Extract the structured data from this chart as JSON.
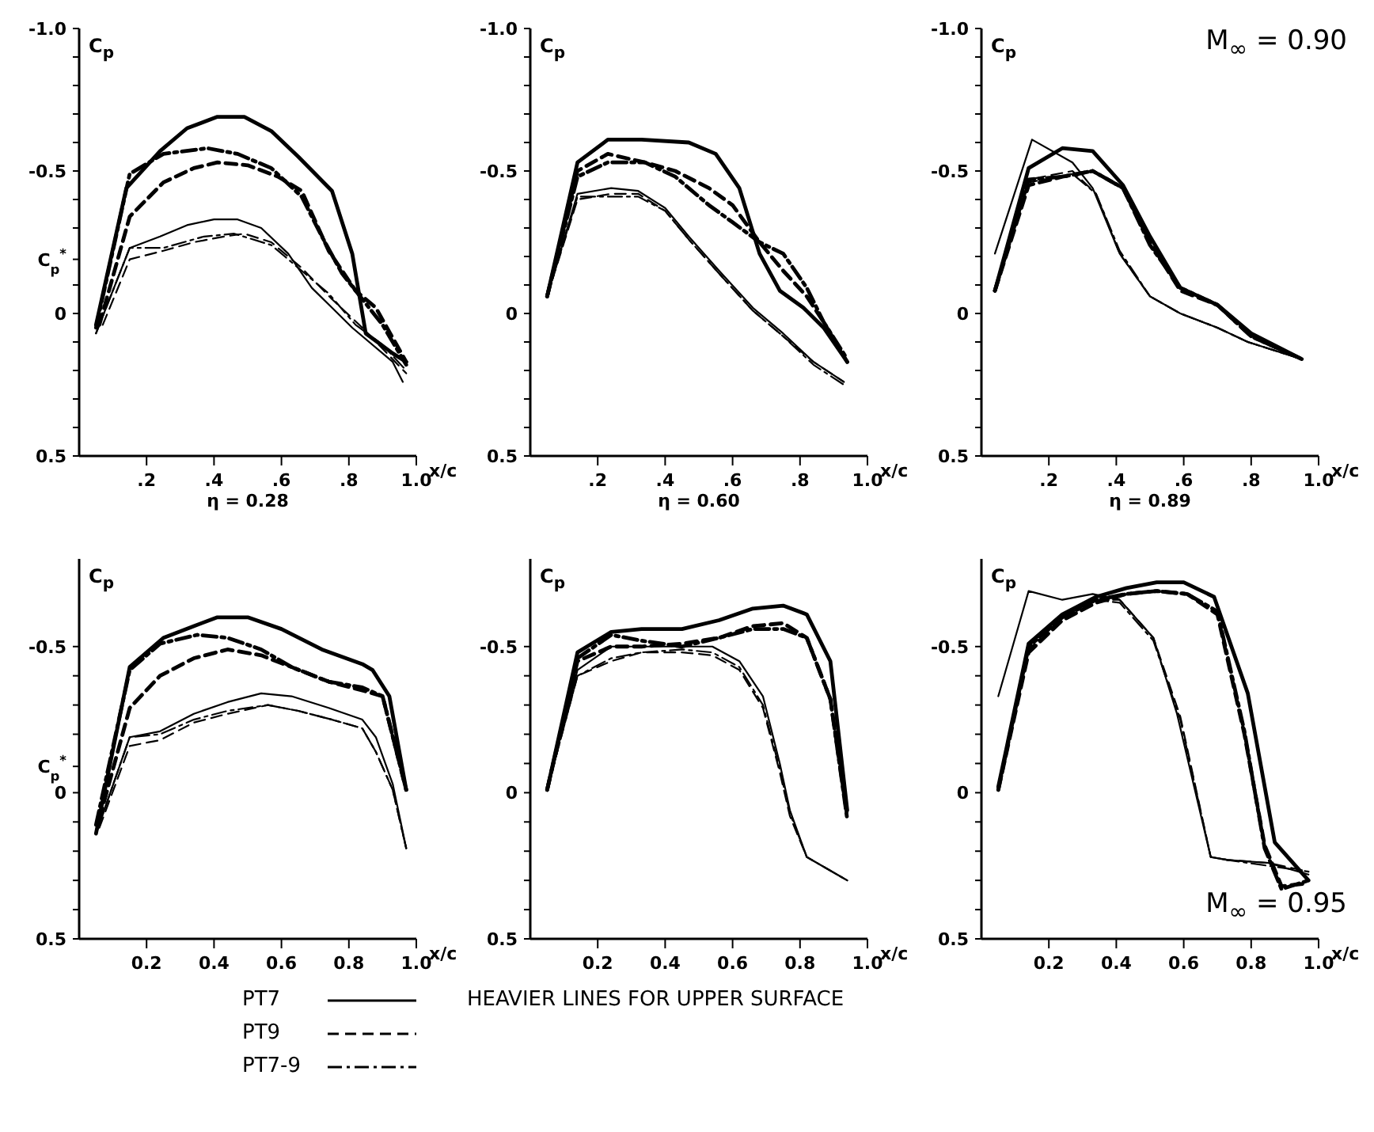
{
  "chart_data": [
    {
      "type": "line",
      "title": "η = 0.28",
      "xlabel": "x/c",
      "ylabel": "C$_{p}$",
      "xlim": [
        0,
        1.0
      ],
      "ylim": [
        0.5,
        -1.0
      ],
      "xticks": [
        {
          "value": 0.2,
          "label": ".2"
        },
        {
          "value": 0.4,
          "label": ".4"
        },
        {
          "value": 0.6,
          "label": ".6"
        },
        {
          "value": 0.8,
          "label": ".8"
        },
        {
          "value": 1.0,
          "label": "1.0"
        }
      ],
      "yticks": [
        {
          "value": -1.0,
          "label": "-1.0"
        },
        {
          "value": -0.9,
          "label": null
        },
        {
          "value": -0.8,
          "label": null
        },
        {
          "value": -0.7,
          "label": null
        },
        {
          "value": -0.6,
          "label": null
        },
        {
          "value": -0.5,
          "label": "-0.5"
        },
        {
          "value": -0.4,
          "label": null
        },
        {
          "value": -0.3,
          "label": null
        },
        {
          "value": -0.19,
          "label": "C$_{p}$$^{*}$"
        },
        {
          "value": -0.1,
          "label": null
        },
        {
          "value": 0,
          "label": "0"
        },
        {
          "value": 0.1,
          "label": null
        },
        {
          "value": 0.2,
          "label": null
        },
        {
          "value": 0.3,
          "label": null
        },
        {
          "value": 0.4,
          "label": null
        },
        {
          "value": 0.5,
          "label": "0.5"
        }
      ],
      "series": [
        {
          "color": "#000000",
          "line_style": "solid",
          "x": [
            0.05,
            0.14,
            0.24,
            0.32,
            0.41,
            0.49,
            0.57,
            0.65,
            0.75,
            0.81,
            0.85,
            0.93,
            0.97
          ],
          "values": [
            0.04,
            -0.44,
            -0.57,
            -0.65,
            -0.69,
            -0.69,
            -0.64,
            -0.55,
            -0.43,
            -0.21,
            0.07,
            0.14,
            0.17
          ]
        },
        {
          "color": "#000000",
          "line_style": "dashed",
          "x": [
            0.06,
            0.15,
            0.25,
            0.34,
            0.41,
            0.5,
            0.59,
            0.66,
            0.74,
            0.82,
            0.88,
            0.97
          ],
          "values": [
            0.04,
            -0.34,
            -0.46,
            -0.51,
            -0.53,
            -0.52,
            -0.48,
            -0.43,
            -0.22,
            -0.08,
            -0.02,
            0.17
          ]
        },
        {
          "color": "#000000",
          "line_style": "dashdot",
          "x": [
            0.05,
            0.15,
            0.25,
            0.38,
            0.47,
            0.57,
            0.66,
            0.72,
            0.78,
            0.84,
            0.9,
            0.97
          ],
          "values": [
            0.05,
            -0.49,
            -0.56,
            -0.58,
            -0.56,
            -0.51,
            -0.41,
            -0.27,
            -0.14,
            -0.05,
            0.04,
            0.18
          ]
        },
        {
          "color": "#000000",
          "line_style": "solid",
          "x": [
            0.05,
            0.15,
            0.24,
            0.32,
            0.4,
            0.47,
            0.54,
            0.62,
            0.69,
            0.75,
            0.81,
            0.93,
            0.96
          ],
          "values": [
            0.07,
            -0.23,
            -0.27,
            -0.31,
            -0.33,
            -0.33,
            -0.3,
            -0.21,
            -0.09,
            -0.02,
            0.05,
            0.17,
            0.24
          ]
        },
        {
          "color": "#000000",
          "line_style": "dashed",
          "x": [
            0.07,
            0.15,
            0.25,
            0.34,
            0.43,
            0.49,
            0.57,
            0.66,
            0.75,
            0.84,
            0.97
          ],
          "values": [
            0.04,
            -0.19,
            -0.22,
            -0.25,
            -0.27,
            -0.28,
            -0.25,
            -0.16,
            -0.05,
            0.05,
            0.21
          ]
        },
        {
          "color": "#000000",
          "line_style": "dashdot",
          "x": [
            0.05,
            0.15,
            0.25,
            0.37,
            0.46,
            0.57,
            0.66,
            0.74,
            0.82,
            0.9,
            0.97
          ],
          "values": [
            0.07,
            -0.23,
            -0.23,
            -0.27,
            -0.28,
            -0.24,
            -0.15,
            -0.07,
            0.04,
            0.11,
            0.2
          ]
        }
      ]
    },
    {
      "type": "line",
      "title": "η = 0.60",
      "xlabel": "x/c",
      "ylabel": "C$_{p}$",
      "xlim": [
        0.0,
        1.0
      ],
      "ylim": [
        0.5,
        -1.0
      ],
      "xticks": [
        {
          "value": 0.2,
          "label": ".2"
        },
        {
          "value": 0.4,
          "label": ".4"
        },
        {
          "value": 0.6,
          "label": ".6"
        },
        {
          "value": 0.8,
          "label": ".8"
        },
        {
          "value": 1.0,
          "label": "1.0"
        }
      ],
      "yticks": [
        {
          "value": -1.0,
          "label": "-1.0"
        },
        {
          "value": -0.9,
          "label": null
        },
        {
          "value": -0.8,
          "label": null
        },
        {
          "value": -0.7,
          "label": null
        },
        {
          "value": -0.6,
          "label": null
        },
        {
          "value": -0.5,
          "label": "-0.5"
        },
        {
          "value": -0.4,
          "label": null
        },
        {
          "value": -0.3,
          "label": null
        },
        {
          "value": -0.2,
          "label": null
        },
        {
          "value": -0.1,
          "label": null
        },
        {
          "value": 0,
          "label": "0"
        },
        {
          "value": 0.1,
          "label": null
        },
        {
          "value": 0.2,
          "label": null
        },
        {
          "value": 0.3,
          "label": null
        },
        {
          "value": 0.4,
          "label": null
        },
        {
          "value": 0.5,
          "label": "0.5"
        }
      ],
      "series": [
        {
          "color": "#000000",
          "line_style": "solid",
          "x": [
            0.05,
            0.14,
            0.23,
            0.33,
            0.47,
            0.55,
            0.62,
            0.68,
            0.74,
            0.81,
            0.87,
            0.94
          ],
          "values": [
            -0.06,
            -0.53,
            -0.61,
            -0.61,
            -0.6,
            -0.56,
            -0.44,
            -0.21,
            -0.08,
            -0.02,
            0.05,
            0.17
          ]
        },
        {
          "color": "#000000",
          "line_style": "dashed",
          "x": [
            0.05,
            0.14,
            0.23,
            0.34,
            0.43,
            0.53,
            0.6,
            0.68,
            0.75,
            0.82,
            0.87,
            0.94
          ],
          "values": [
            -0.06,
            -0.5,
            -0.56,
            -0.53,
            -0.5,
            -0.44,
            -0.38,
            -0.25,
            -0.15,
            -0.06,
            0.03,
            0.17
          ]
        },
        {
          "color": "#000000",
          "line_style": "dashdot",
          "x": [
            0.05,
            0.14,
            0.23,
            0.34,
            0.43,
            0.53,
            0.6,
            0.68,
            0.75,
            0.82,
            0.87,
            0.94
          ],
          "values": [
            -0.06,
            -0.48,
            -0.53,
            -0.53,
            -0.48,
            -0.38,
            -0.32,
            -0.25,
            -0.21,
            -0.09,
            0.03,
            0.16
          ]
        },
        {
          "color": "#000000",
          "line_style": "solid",
          "x": [
            0.05,
            0.14,
            0.24,
            0.32,
            0.4,
            0.47,
            0.56,
            0.66,
            0.75,
            0.84,
            0.93
          ],
          "values": [
            -0.06,
            -0.42,
            -0.44,
            -0.43,
            -0.37,
            -0.27,
            -0.15,
            -0.02,
            0.07,
            0.17,
            0.24
          ]
        },
        {
          "color": "#000000",
          "line_style": "dashed",
          "x": [
            0.05,
            0.14,
            0.24,
            0.32,
            0.4,
            0.47,
            0.56,
            0.66,
            0.75,
            0.84,
            0.93
          ],
          "values": [
            -0.06,
            -0.4,
            -0.42,
            -0.42,
            -0.36,
            -0.26,
            -0.14,
            -0.01,
            0.08,
            0.17,
            0.24
          ]
        },
        {
          "color": "#000000",
          "line_style": "dashdot",
          "x": [
            0.05,
            0.14,
            0.24,
            0.32,
            0.4,
            0.47,
            0.56,
            0.66,
            0.75,
            0.84,
            0.93
          ],
          "values": [
            -0.06,
            -0.41,
            -0.41,
            -0.41,
            -0.36,
            -0.26,
            -0.14,
            -0.01,
            0.08,
            0.18,
            0.25
          ]
        }
      ]
    },
    {
      "type": "line",
      "title": "η = 0.89",
      "xlabel": "x/c",
      "ylabel": "C$_{p}$",
      "annotations": [
        "M$_{∞}$ = 0.90"
      ],
      "xlim": [
        0,
        1.0
      ],
      "ylim": [
        0.5,
        -1.0
      ],
      "xticks": [
        {
          "value": 0.2,
          "label": ".2"
        },
        {
          "value": 0.4,
          "label": ".4"
        },
        {
          "value": 0.6,
          "label": ".6"
        },
        {
          "value": 0.8,
          "label": ".8"
        },
        {
          "value": 1.0,
          "label": "1.0"
        }
      ],
      "yticks": [
        {
          "value": -1.0,
          "label": "-1.0"
        },
        {
          "value": -0.9,
          "label": null
        },
        {
          "value": -0.8,
          "label": null
        },
        {
          "value": -0.7,
          "label": null
        },
        {
          "value": -0.6,
          "label": null
        },
        {
          "value": -0.5,
          "label": "-0.5"
        },
        {
          "value": -0.4,
          "label": null
        },
        {
          "value": -0.3,
          "label": null
        },
        {
          "value": -0.2,
          "label": null
        },
        {
          "value": -0.1,
          "label": null
        },
        {
          "value": 0,
          "label": "0"
        },
        {
          "value": 0.1,
          "label": null
        },
        {
          "value": 0.2,
          "label": null
        },
        {
          "value": 0.3,
          "label": null
        },
        {
          "value": 0.4,
          "label": null
        },
        {
          "value": 0.5,
          "label": "0.5"
        }
      ],
      "series": [
        {
          "color": "#000000",
          "line_style": "solid",
          "x": [
            0.04,
            0.14,
            0.24,
            0.33,
            0.42,
            0.5,
            0.59,
            0.7,
            0.8,
            0.95
          ],
          "values": [
            -0.08,
            -0.51,
            -0.58,
            -0.57,
            -0.45,
            -0.27,
            -0.09,
            -0.03,
            0.07,
            0.16
          ]
        },
        {
          "color": "#000000",
          "line_style": "dashed",
          "x": [
            0.04,
            0.14,
            0.24,
            0.33,
            0.42,
            0.5,
            0.59,
            0.7,
            0.8,
            0.95
          ],
          "values": [
            -0.08,
            -0.45,
            -0.48,
            -0.5,
            -0.44,
            -0.25,
            -0.08,
            -0.03,
            0.08,
            0.16
          ]
        },
        {
          "color": "#000000",
          "line_style": "dashdot",
          "x": [
            0.04,
            0.14,
            0.24,
            0.33,
            0.42,
            0.5,
            0.59,
            0.7,
            0.8,
            0.95
          ],
          "values": [
            -0.08,
            -0.47,
            -0.48,
            -0.5,
            -0.44,
            -0.24,
            -0.09,
            -0.03,
            0.08,
            0.16
          ]
        },
        {
          "color": "#000000",
          "line_style": "solid",
          "x": [
            0.04,
            0.15,
            0.27,
            0.33,
            0.41,
            0.5,
            0.59,
            0.7,
            0.79,
            0.95
          ],
          "values": [
            -0.21,
            -0.61,
            -0.53,
            -0.44,
            -0.21,
            -0.06,
            0,
            0.05,
            0.1,
            0.16
          ]
        },
        {
          "color": "#000000",
          "line_style": "dashed",
          "x": [
            0.04,
            0.14,
            0.27,
            0.34,
            0.41,
            0.5,
            0.59,
            0.7,
            0.79,
            0.95
          ],
          "values": [
            -0.08,
            -0.47,
            -0.5,
            -0.42,
            -0.21,
            -0.06,
            0,
            0.05,
            0.1,
            0.16
          ]
        },
        {
          "color": "#000000",
          "line_style": "dashdot",
          "x": [
            0.04,
            0.14,
            0.27,
            0.34,
            0.41,
            0.5,
            0.59,
            0.7,
            0.79,
            0.95
          ],
          "values": [
            -0.08,
            -0.46,
            -0.49,
            -0.42,
            -0.22,
            -0.06,
            0,
            0.05,
            0.1,
            0.16
          ]
        }
      ]
    },
    {
      "type": "line",
      "xlabel": "x/c",
      "ylabel": "C$_{p}$",
      "legend": "bottom",
      "annotations": [
        "HEAVIER LINES FOR UPPER SURFACE"
      ],
      "xlim": [
        0,
        1.0
      ],
      "ylim": [
        0.5,
        -0.8
      ],
      "xticks": [
        0.2,
        0.4,
        0.6,
        0.8,
        {
          "value": 1.0,
          "label": "1.0"
        }
      ],
      "yticks": [
        {
          "value": -0.5,
          "label": "-0.5"
        },
        {
          "value": -0.4,
          "label": null
        },
        {
          "value": -0.3,
          "label": null
        },
        {
          "value": -0.2,
          "label": null
        },
        {
          "value": -0.09,
          "label": "C$_{p}$$^{*}$"
        },
        {
          "value": 0,
          "label": "0"
        },
        {
          "value": 0.1,
          "label": null
        },
        {
          "value": 0.2,
          "label": null
        },
        {
          "value": 0.3,
          "label": null
        },
        {
          "value": 0.4,
          "label": null
        },
        {
          "value": 0.5,
          "label": "0.5"
        }
      ],
      "series": [
        {
          "name": "PT7",
          "color": "#000000",
          "line_style": "solid",
          "x": [
            0.05,
            0.15,
            0.25,
            0.34,
            0.41,
            0.5,
            0.6,
            0.72,
            0.84,
            0.87,
            0.92,
            0.97
          ],
          "values": [
            0.14,
            -0.43,
            -0.53,
            -0.57,
            -0.6,
            -0.6,
            -0.56,
            -0.49,
            -0.44,
            -0.42,
            -0.33,
            -0.01
          ]
        },
        {
          "name": "PT9",
          "color": "#000000",
          "line_style": "dashed",
          "x": [
            0.06,
            0.15,
            0.24,
            0.34,
            0.44,
            0.54,
            0.63,
            0.74,
            0.84,
            0.9,
            0.97
          ],
          "values": [
            0.09,
            -0.29,
            -0.4,
            -0.46,
            -0.49,
            -0.47,
            -0.43,
            -0.38,
            -0.35,
            -0.33,
            -0.01
          ]
        },
        {
          "name": "PT7-9",
          "color": "#000000",
          "line_style": "dashdot",
          "x": [
            0.05,
            0.15,
            0.24,
            0.35,
            0.44,
            0.54,
            0.63,
            0.74,
            0.84,
            0.9,
            0.97
          ],
          "values": [
            0.11,
            -0.42,
            -0.51,
            -0.54,
            -0.53,
            -0.49,
            -0.43,
            -0.38,
            -0.36,
            -0.33,
            -0.01
          ]
        },
        {
          "color": "#000000",
          "line_style": "solid",
          "x": [
            0.05,
            0.15,
            0.24,
            0.34,
            0.44,
            0.54,
            0.63,
            0.74,
            0.84,
            0.88,
            0.93,
            0.97
          ],
          "values": [
            0.14,
            -0.19,
            -0.21,
            -0.27,
            -0.31,
            -0.34,
            -0.33,
            -0.29,
            -0.25,
            -0.19,
            -0.03,
            0.19
          ]
        },
        {
          "color": "#000000",
          "line_style": "dashed",
          "x": [
            0.06,
            0.15,
            0.24,
            0.34,
            0.44,
            0.56,
            0.65,
            0.75,
            0.84,
            0.88,
            0.93,
            0.97
          ],
          "values": [
            0.12,
            -0.16,
            -0.18,
            -0.24,
            -0.27,
            -0.3,
            -0.28,
            -0.25,
            -0.22,
            -0.14,
            -0.01,
            0.19
          ]
        },
        {
          "color": "#000000",
          "line_style": "dashdot",
          "x": [
            0.05,
            0.15,
            0.24,
            0.34,
            0.44,
            0.56,
            0.65,
            0.75,
            0.84,
            0.88,
            0.93,
            0.97
          ],
          "values": [
            0.14,
            -0.19,
            -0.2,
            -0.25,
            -0.28,
            -0.3,
            -0.28,
            -0.25,
            -0.22,
            -0.14,
            -0.01,
            0.19
          ]
        }
      ]
    },
    {
      "type": "line",
      "xlabel": "x/c",
      "ylabel": "C$_{p}$",
      "xlim": [
        0,
        1.0
      ],
      "ylim": [
        0.5,
        -0.8
      ],
      "xticks": [
        0.2,
        0.4,
        0.6,
        0.8,
        {
          "value": 1.0,
          "label": "1.0"
        }
      ],
      "yticks": [
        {
          "value": -0.5,
          "label": "-0.5"
        },
        {
          "value": -0.4,
          "label": null
        },
        {
          "value": -0.3,
          "label": null
        },
        {
          "value": -0.2,
          "label": null
        },
        {
          "value": -0.1,
          "label": null
        },
        {
          "value": 0,
          "label": "0"
        },
        {
          "value": 0.1,
          "label": null
        },
        {
          "value": 0.2,
          "label": null
        },
        {
          "value": 0.3,
          "label": null
        },
        {
          "value": 0.4,
          "label": null
        },
        {
          "value": 0.5,
          "label": "0.5"
        }
      ],
      "series": [
        {
          "color": "#000000",
          "line_style": "solid",
          "x": [
            0.05,
            0.14,
            0.24,
            0.33,
            0.45,
            0.56,
            0.66,
            0.75,
            0.82,
            0.89,
            0.94
          ],
          "values": [
            -0.01,
            -0.48,
            -0.55,
            -0.56,
            -0.56,
            -0.59,
            -0.63,
            -0.64,
            -0.61,
            -0.45,
            0.06
          ]
        },
        {
          "color": "#000000",
          "line_style": "dashed",
          "x": [
            0.05,
            0.14,
            0.24,
            0.33,
            0.45,
            0.56,
            0.66,
            0.75,
            0.82,
            0.89,
            0.94
          ],
          "values": [
            -0.01,
            -0.45,
            -0.5,
            -0.5,
            -0.51,
            -0.53,
            -0.57,
            -0.58,
            -0.53,
            -0.32,
            0.08
          ]
        },
        {
          "color": "#000000",
          "line_style": "dashdot",
          "x": [
            0.05,
            0.14,
            0.24,
            0.33,
            0.45,
            0.56,
            0.66,
            0.75,
            0.82,
            0.89,
            0.94
          ],
          "values": [
            -0.01,
            -0.46,
            -0.54,
            -0.52,
            -0.5,
            -0.53,
            -0.56,
            -0.56,
            -0.53,
            -0.32,
            0.09
          ]
        },
        {
          "color": "#000000",
          "line_style": "solid",
          "x": [
            0.05,
            0.14,
            0.24,
            0.33,
            0.45,
            0.54,
            0.62,
            0.69,
            0.74,
            0.77,
            0.82,
            0.94
          ],
          "values": [
            -0.01,
            -0.42,
            -0.5,
            -0.5,
            -0.5,
            -0.5,
            -0.45,
            -0.33,
            -0.1,
            0.06,
            0.22,
            0.3
          ]
        },
        {
          "color": "#000000",
          "line_style": "dashed",
          "x": [
            0.05,
            0.14,
            0.24,
            0.33,
            0.45,
            0.54,
            0.62,
            0.69,
            0.74,
            0.77,
            0.82,
            0.94
          ],
          "values": [
            -0.01,
            -0.4,
            -0.45,
            -0.48,
            -0.48,
            -0.47,
            -0.42,
            -0.29,
            -0.07,
            0.08,
            0.22,
            0.3
          ]
        },
        {
          "color": "#000000",
          "line_style": "dashdot",
          "x": [
            0.05,
            0.14,
            0.24,
            0.33,
            0.45,
            0.54,
            0.62,
            0.69,
            0.74,
            0.77,
            0.82,
            0.94
          ],
          "values": [
            -0.01,
            -0.4,
            -0.46,
            -0.48,
            -0.49,
            -0.48,
            -0.43,
            -0.3,
            -0.08,
            0.07,
            0.22,
            0.3
          ]
        }
      ]
    },
    {
      "type": "line",
      "xlabel": "x/c",
      "ylabel": "C$_{p}$",
      "annotations": [
        "M$_{∞}$ = 0.95"
      ],
      "xlim": [
        0,
        1.0
      ],
      "ylim": [
        0.5,
        -0.8
      ],
      "xticks": [
        0.2,
        0.4,
        0.6,
        0.8,
        {
          "value": 1.0,
          "label": "1.0"
        }
      ],
      "yticks": [
        {
          "value": -0.5,
          "label": "-0.5"
        },
        {
          "value": -0.4,
          "label": null
        },
        {
          "value": -0.3,
          "label": null
        },
        {
          "value": -0.2,
          "label": null
        },
        {
          "value": -0.1,
          "label": null
        },
        {
          "value": 0,
          "label": "0"
        },
        {
          "value": 0.1,
          "label": null
        },
        {
          "value": 0.2,
          "label": null
        },
        {
          "value": 0.3,
          "label": null
        },
        {
          "value": 0.4,
          "label": null
        },
        {
          "value": 0.5,
          "label": "0.5"
        }
      ],
      "series": [
        {
          "color": "#000000",
          "line_style": "solid",
          "x": [
            0.05,
            0.14,
            0.24,
            0.34,
            0.43,
            0.52,
            0.6,
            0.69,
            0.79,
            0.87,
            0.97
          ],
          "values": [
            -0.02,
            -0.51,
            -0.61,
            -0.67,
            -0.7,
            -0.72,
            -0.72,
            -0.67,
            -0.34,
            0.17,
            0.3
          ]
        },
        {
          "color": "#000000",
          "line_style": "dashed",
          "x": [
            0.05,
            0.14,
            0.24,
            0.34,
            0.43,
            0.52,
            0.61,
            0.7,
            0.78,
            0.84,
            0.89,
            0.97
          ],
          "values": [
            -0.01,
            -0.48,
            -0.59,
            -0.65,
            -0.68,
            -0.69,
            -0.68,
            -0.61,
            -0.2,
            0.18,
            0.32,
            0.31
          ]
        },
        {
          "color": "#000000",
          "line_style": "dashdot",
          "x": [
            0.05,
            0.14,
            0.24,
            0.34,
            0.43,
            0.52,
            0.61,
            0.7,
            0.78,
            0.84,
            0.89,
            0.97
          ],
          "values": [
            -0.01,
            -0.5,
            -0.6,
            -0.66,
            -0.68,
            -0.69,
            -0.68,
            -0.62,
            -0.21,
            0.19,
            0.33,
            0.3
          ]
        },
        {
          "color": "#000000",
          "line_style": "solid",
          "x": [
            0.05,
            0.14,
            0.24,
            0.33,
            0.41,
            0.51,
            0.58,
            0.68,
            0.73,
            0.85,
            0.97
          ],
          "values": [
            -0.33,
            -0.69,
            -0.66,
            -0.68,
            -0.66,
            -0.53,
            -0.27,
            0.22,
            0.23,
            0.24,
            0.28
          ]
        },
        {
          "color": "#000000",
          "line_style": "dashed",
          "x": [
            0.05,
            0.14,
            0.24,
            0.34,
            0.41,
            0.51,
            0.59,
            0.68,
            0.73,
            0.85,
            0.97
          ],
          "values": [
            -0.02,
            -0.5,
            -0.61,
            -0.66,
            -0.66,
            -0.53,
            -0.26,
            0.22,
            0.23,
            0.24,
            0.27
          ]
        },
        {
          "color": "#000000",
          "line_style": "dashdot",
          "x": [
            0.05,
            0.14,
            0.24,
            0.34,
            0.41,
            0.51,
            0.59,
            0.68,
            0.73,
            0.85,
            0.97
          ],
          "values": [
            -0.02,
            -0.49,
            -0.6,
            -0.66,
            -0.65,
            -0.52,
            -0.25,
            0.22,
            0.23,
            0.25,
            0.27
          ]
        }
      ]
    }
  ]
}
